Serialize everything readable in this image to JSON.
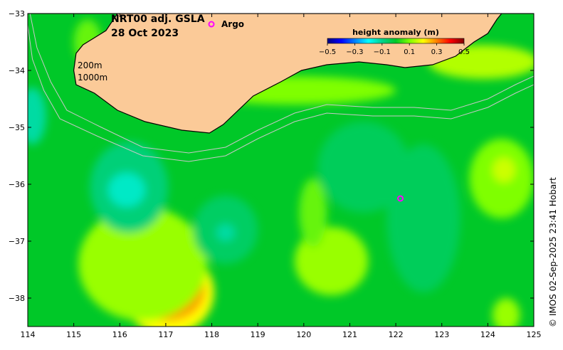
{
  "title": {
    "line1": "NRT00 adj. GSLA",
    "line2": "28 Oct 2023"
  },
  "legend": {
    "argo_label": "Argo",
    "argo_marker_color": "#ff00ff"
  },
  "contour_labels": {
    "c200": "200m",
    "c1000": "1000m"
  },
  "colorbar": {
    "title": "height anomaly (m)",
    "min": -0.5,
    "max": 0.5,
    "tick_values": [
      -0.5,
      -0.3,
      -0.1,
      0.1,
      0.3,
      0.5
    ],
    "tick_labels": [
      "−0.5",
      "−0.3",
      "−0.1",
      "0.1",
      "0.3",
      "0.5"
    ],
    "colors": [
      "#00007f",
      "#0000ff",
      "#007fff",
      "#00ffff",
      "#00d28c",
      "#00c828",
      "#7fff00",
      "#ffff00",
      "#ff7f00",
      "#ff0000",
      "#7f0000"
    ]
  },
  "axes": {
    "lon_range": [
      114,
      125
    ],
    "lat_range": [
      -38.5,
      -33
    ],
    "x_ticks": [
      114,
      115,
      116,
      117,
      118,
      119,
      120,
      121,
      122,
      123,
      124,
      125
    ],
    "x_tick_labels": [
      "114",
      "115",
      "116",
      "117",
      "118",
      "119",
      "120",
      "121",
      "122",
      "123",
      "124",
      "125"
    ],
    "y_ticks": [
      -33,
      -34,
      -35,
      -36,
      -37,
      -38
    ],
    "y_tick_labels": [
      "−33",
      "−34",
      "−35",
      "−36",
      "−37",
      "−38"
    ]
  },
  "credit": "© IMOS 02-Sep-2025 23:41 Hobart",
  "colors": {
    "land": "#fbca98",
    "ocean_base": "#00c828",
    "coast_edge": "#000000",
    "contour_line": "#c8c8c8"
  },
  "map_data": {
    "argo_floats": [
      {
        "lon": 122.1,
        "lat": -36.25
      }
    ],
    "coastline": [
      [
        114,
        -33
      ],
      [
        115.95,
        -33
      ],
      [
        115.7,
        -33.3
      ],
      [
        115.2,
        -33.55
      ],
      [
        115.05,
        -33.7
      ],
      [
        115.0,
        -34.0
      ],
      [
        115.05,
        -34.25
      ],
      [
        115.45,
        -34.4
      ],
      [
        115.95,
        -34.7
      ],
      [
        116.55,
        -34.9
      ],
      [
        117.35,
        -35.05
      ],
      [
        117.95,
        -35.1
      ],
      [
        118.25,
        -34.95
      ],
      [
        118.9,
        -34.45
      ],
      [
        119.5,
        -34.2
      ],
      [
        119.95,
        -34.0
      ],
      [
        120.5,
        -33.9
      ],
      [
        121.2,
        -33.85
      ],
      [
        121.8,
        -33.9
      ],
      [
        122.2,
        -33.95
      ],
      [
        122.8,
        -33.9
      ],
      [
        123.3,
        -33.75
      ],
      [
        123.7,
        -33.5
      ],
      [
        124.0,
        -33.35
      ],
      [
        124.2,
        -33.1
      ],
      [
        124.3,
        -33.0
      ],
      [
        125,
        -33
      ]
    ],
    "isobath_200": [
      [
        114.05,
        -33
      ],
      [
        114.2,
        -33.6
      ],
      [
        114.5,
        -34.2
      ],
      [
        114.85,
        -34.7
      ],
      [
        115.6,
        -35.0
      ],
      [
        116.5,
        -35.35
      ],
      [
        117.5,
        -35.45
      ],
      [
        118.3,
        -35.35
      ],
      [
        119.0,
        -35.05
      ],
      [
        119.8,
        -34.75
      ],
      [
        120.5,
        -34.6
      ],
      [
        121.5,
        -34.65
      ],
      [
        122.4,
        -34.65
      ],
      [
        123.2,
        -34.7
      ],
      [
        124.0,
        -34.5
      ],
      [
        124.6,
        -34.25
      ],
      [
        125,
        -34.1
      ]
    ],
    "isobath_1000": [
      [
        114.0,
        -33.2
      ],
      [
        114.1,
        -33.8
      ],
      [
        114.35,
        -34.35
      ],
      [
        114.7,
        -34.85
      ],
      [
        115.5,
        -35.15
      ],
      [
        116.5,
        -35.5
      ],
      [
        117.5,
        -35.6
      ],
      [
        118.3,
        -35.5
      ],
      [
        119.0,
        -35.2
      ],
      [
        119.8,
        -34.9
      ],
      [
        120.5,
        -34.75
      ],
      [
        121.5,
        -34.8
      ],
      [
        122.4,
        -34.8
      ],
      [
        123.2,
        -34.85
      ],
      [
        124.0,
        -34.65
      ],
      [
        124.6,
        -34.4
      ],
      [
        125,
        -34.25
      ]
    ],
    "anomaly_blobs": [
      {
        "lon": 117.05,
        "lat": -37.9,
        "rx_deg": 1.0,
        "ry_deg": 0.75,
        "value": 0.2
      },
      {
        "lon": 117.05,
        "lat": -37.85,
        "rx_deg": 0.8,
        "ry_deg": 0.55,
        "value": 0.28
      },
      {
        "lon": 117.05,
        "lat": -37.85,
        "rx_deg": 0.45,
        "ry_deg": 0.3,
        "value": 0.35
      },
      {
        "lon": 117.0,
        "lat": -37.9,
        "rx_deg": 0.1,
        "ry_deg": 0.12,
        "value": 0.42
      },
      {
        "lon": 116.5,
        "lat": -37.4,
        "rx_deg": 1.4,
        "ry_deg": 1.0,
        "value": 0.12
      },
      {
        "lon": 120.6,
        "lat": -37.35,
        "rx_deg": 0.8,
        "ry_deg": 0.6,
        "value": 0.12
      },
      {
        "lon": 120.2,
        "lat": -36.5,
        "rx_deg": 0.3,
        "ry_deg": 0.6,
        "value": 0.08
      },
      {
        "lon": 124.3,
        "lat": -35.9,
        "rx_deg": 0.7,
        "ry_deg": 0.7,
        "value": 0.1
      },
      {
        "lon": 124.35,
        "lat": -35.75,
        "rx_deg": 0.25,
        "ry_deg": 0.22,
        "value": 0.16
      },
      {
        "lon": 124.4,
        "lat": -38.3,
        "rx_deg": 0.3,
        "ry_deg": 0.3,
        "value": 0.12
      },
      {
        "lon": 116.2,
        "lat": -36.05,
        "rx_deg": 0.85,
        "ry_deg": 0.8,
        "value": -0.08
      },
      {
        "lon": 116.15,
        "lat": -36.1,
        "rx_deg": 0.4,
        "ry_deg": 0.3,
        "value": -0.15
      },
      {
        "lon": 118.3,
        "lat": -36.8,
        "rx_deg": 0.7,
        "ry_deg": 0.6,
        "value": -0.06
      },
      {
        "lon": 118.3,
        "lat": -36.85,
        "rx_deg": 0.2,
        "ry_deg": 0.15,
        "value": -0.12
      },
      {
        "lon": 122.6,
        "lat": -36.6,
        "rx_deg": 0.8,
        "ry_deg": 1.3,
        "value": -0.05
      },
      {
        "lon": 121.3,
        "lat": -35.7,
        "rx_deg": 1.0,
        "ry_deg": 0.8,
        "value": -0.05
      },
      {
        "lon": 114.1,
        "lat": -34.8,
        "rx_deg": 0.3,
        "ry_deg": 0.5,
        "value": -0.12
      },
      {
        "lon": 119.8,
        "lat": -34.35,
        "rx_deg": 2.2,
        "ry_deg": 0.25,
        "value": 0.1
      },
      {
        "lon": 123.9,
        "lat": -33.85,
        "rx_deg": 1.2,
        "ry_deg": 0.3,
        "value": 0.14
      },
      {
        "lon": 115.3,
        "lat": -33.5,
        "rx_deg": 0.3,
        "ry_deg": 0.4,
        "value": 0.08
      }
    ]
  }
}
